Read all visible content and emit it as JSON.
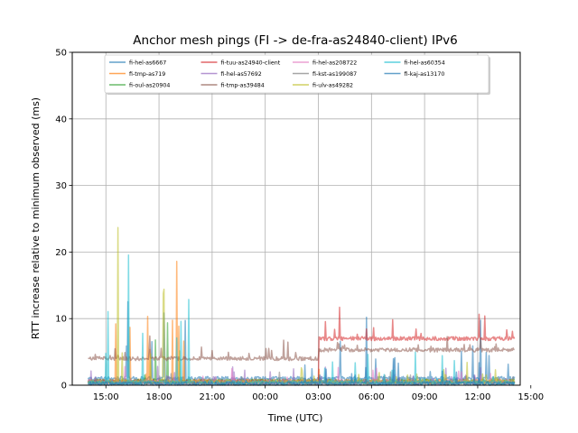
{
  "chart_data": {
    "type": "line",
    "title": "Anchor mesh pings (FI -> de-fra-as24840-client) IPv6",
    "xlabel": "Time (UTC)",
    "ylabel": "RTT increase relative to minimum observed (ms)",
    "ylim": [
      0,
      50
    ],
    "yticks": [
      0,
      10,
      20,
      30,
      40,
      50
    ],
    "xlim_hours": [
      13.1,
      38.4
    ],
    "xticks": [
      {
        "hour": 15,
        "label": "15:00"
      },
      {
        "hour": 18,
        "label": "18:00"
      },
      {
        "hour": 21,
        "label": "21:00"
      },
      {
        "hour": 24,
        "label": "00:00"
      },
      {
        "hour": 27,
        "label": "03:00"
      },
      {
        "hour": 30,
        "label": "06:00"
      },
      {
        "hour": 33,
        "label": "09:00"
      },
      {
        "hour": 36,
        "label": "12:00"
      },
      {
        "hour": 39,
        "label": "15:00"
      }
    ],
    "grid": true,
    "legend_position": "top-center",
    "legend_columns": 4,
    "series": [
      {
        "name": "fi-hel-as6667",
        "color": "#1f77b4",
        "base": 1.0,
        "spike_windows": [
          {
            "from": 16.0,
            "to": 20.0,
            "max": 22
          },
          {
            "from": 25.5,
            "to": 38.0,
            "max": 13
          }
        ],
        "late_base": 1.5
      },
      {
        "name": "fi-tmp-as719",
        "color": "#ff7f0e",
        "base": 0.6,
        "spike_windows": [
          {
            "from": 15.5,
            "to": 20.0,
            "max": 26
          },
          {
            "from": 26.5,
            "to": 27.5,
            "max": 10
          }
        ]
      },
      {
        "name": "fi-oul-as20904",
        "color": "#2ca02c",
        "base": 0.6,
        "spike_windows": [
          {
            "from": 15.5,
            "to": 20.0,
            "max": 25
          }
        ]
      },
      {
        "name": "fi-tuu-as24940-client",
        "color": "#d62728",
        "base": 0.5,
        "step": {
          "at": 27.0,
          "level": 7.0
        },
        "spike_windows": [
          {
            "from": 27.0,
            "to": 38.0,
            "max": 12
          }
        ]
      },
      {
        "name": "fi-hel-as57692",
        "color": "#9467bd",
        "base": 0.4,
        "spike_windows": [
          {
            "from": 14.0,
            "to": 38.0,
            "max": 3
          }
        ]
      },
      {
        "name": "fi-tmp-as39484",
        "color": "#8c564b",
        "base": 4.0,
        "step": {
          "at": 27.0,
          "level": 5.3
        },
        "spike_windows": [
          {
            "from": 14.0,
            "to": 38.0,
            "max": 8
          }
        ]
      },
      {
        "name": "fi-hel-as208722",
        "color": "#e377c2",
        "base": 0.5,
        "spike_windows": [
          {
            "from": 14.0,
            "to": 38.0,
            "max": 3
          }
        ]
      },
      {
        "name": "fi-kst-as199087",
        "color": "#7f7f7f",
        "base": 0.3,
        "spike_windows": [
          {
            "from": 14.0,
            "to": 38.0,
            "max": 2
          }
        ]
      },
      {
        "name": "fi-ulv-as49282",
        "color": "#bcbd22",
        "base": 0.5,
        "spike_windows": [
          {
            "from": 15.5,
            "to": 20.0,
            "max": 24
          },
          {
            "from": 26.0,
            "to": 38.0,
            "max": 4
          }
        ]
      },
      {
        "name": "fi-hel-as60354",
        "color": "#17becf",
        "base": 0.4,
        "spike_windows": [
          {
            "from": 14.5,
            "to": 20.0,
            "max": 28
          },
          {
            "from": 27.0,
            "to": 38.0,
            "max": 5
          }
        ]
      },
      {
        "name": "fi-kaj-as13170",
        "color": "#1f77b4",
        "base": 0.2,
        "spike_windows": [
          {
            "from": 24.0,
            "to": 38.0,
            "max": 4
          }
        ]
      }
    ]
  }
}
